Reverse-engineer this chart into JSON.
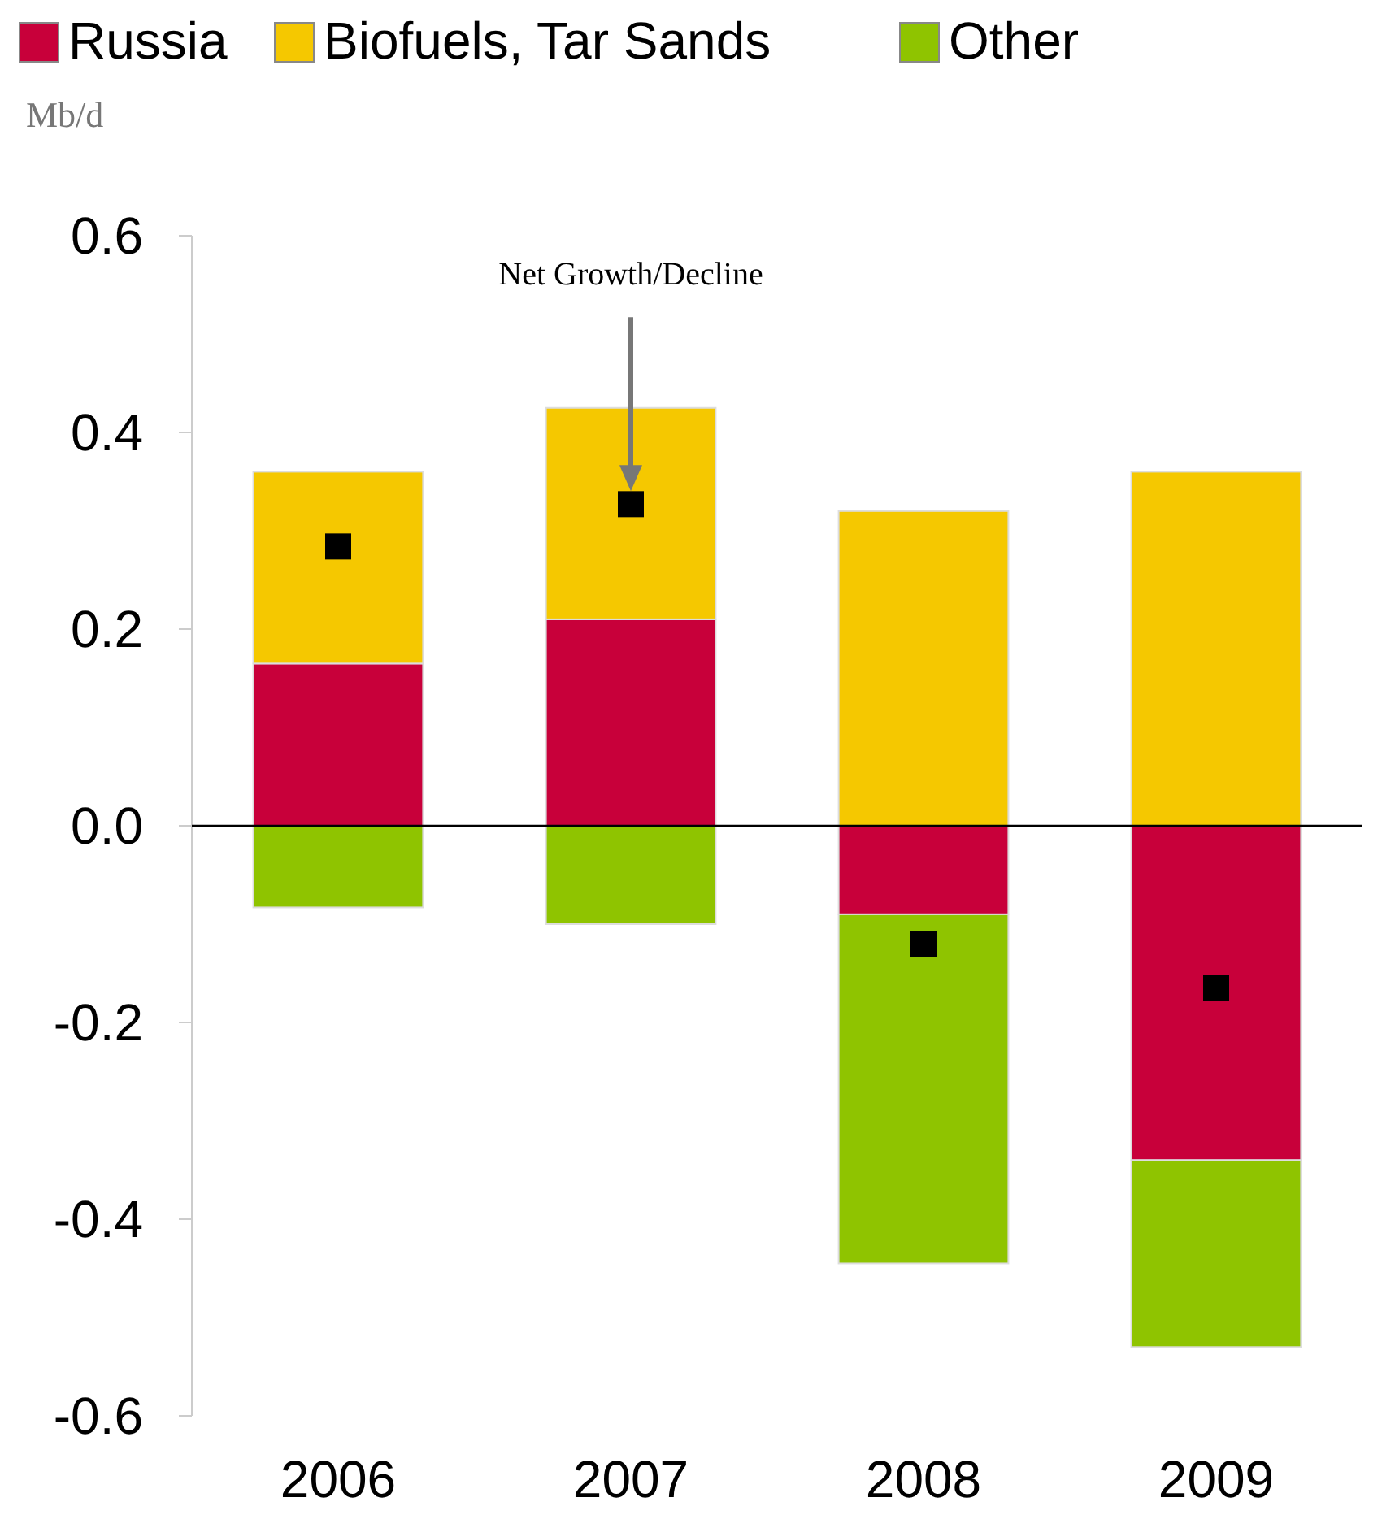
{
  "chart_data": {
    "type": "bar",
    "stacked": true,
    "ylabel": "Mb/d",
    "categories": [
      "2006",
      "2007",
      "2008",
      "2009"
    ],
    "series": [
      {
        "name": "Russia",
        "color": "#c8003a",
        "values": [
          0.165,
          0.21,
          -0.09,
          -0.34
        ]
      },
      {
        "name": "Biofuels, Tar Sands",
        "color": "#f5c800",
        "values": [
          0.195,
          0.215,
          0.32,
          0.36
        ]
      },
      {
        "name": "Other",
        "color": "#8fc400",
        "values": [
          -0.083,
          -0.1,
          -0.355,
          -0.19
        ]
      },
      {
        "type": "scatter",
        "color": "#000000",
        "values": [
          0.284,
          0.327,
          -0.12,
          -0.165
        ]
      }
    ],
    "marker": "square",
    "ylim": [
      -0.6,
      0.6
    ],
    "yticks": [
      {
        "value": -0.6,
        "label": "-0.6"
      },
      {
        "value": -0.4,
        "label": "-0.4"
      },
      {
        "value": -0.2,
        "label": "-0.2"
      },
      {
        "value": 0,
        "label": "0.0"
      },
      {
        "value": 0.2,
        "label": "0.2"
      },
      {
        "value": 0.4,
        "label": "0.4"
      },
      {
        "value": 0.6,
        "label": "0.6"
      }
    ],
    "grid": false,
    "legend": "top",
    "ref_lines": [
      {
        "axis": "y",
        "value": 0,
        "color": "#000000"
      }
    ],
    "annotations": [
      "Net Growth/Decline"
    ]
  }
}
